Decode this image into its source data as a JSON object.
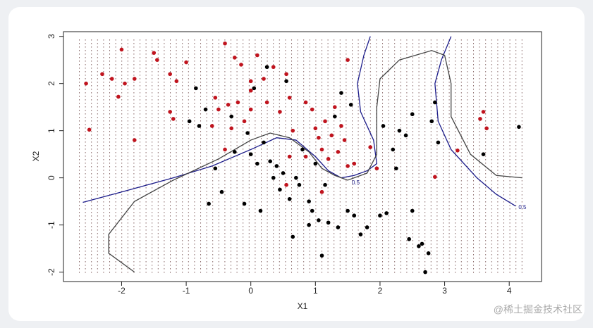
{
  "chart_data": {
    "type": "scatter",
    "xlabel": "X1",
    "ylabel": "X2",
    "xlim": [
      -2.9,
      4.5
    ],
    "ylim": [
      -2.2,
      3.1
    ],
    "xticks": [
      -2,
      -1,
      0,
      1,
      2,
      3,
      4
    ],
    "yticks": [
      -2,
      -1,
      0,
      1,
      2,
      3
    ],
    "series": [
      {
        "color": "#c0141e",
        "x": [
          -2.55,
          -2.5,
          -2.3,
          -2.15,
          -2.05,
          -2.0,
          -1.95,
          -1.8,
          -1.8,
          -1.5,
          -1.45,
          -1.25,
          -1.25,
          -1.2,
          -1.15,
          -1.0,
          -0.6,
          -0.55,
          -0.5,
          -0.4,
          -0.35,
          -0.3,
          -0.25,
          -0.2,
          -0.15,
          -0.1,
          0.0,
          0.0,
          0.0,
          0.1,
          0.2,
          0.25,
          0.35,
          0.45,
          0.55,
          0.6,
          0.65,
          0.85,
          0.95,
          1.0,
          1.05,
          1.1,
          1.15,
          1.2,
          1.25,
          1.3,
          1.35,
          1.4,
          1.45,
          1.5,
          1.5,
          1.6,
          1.85,
          1.95,
          0.55,
          0.85,
          1.1,
          2.85,
          3.2,
          3.55,
          3.6,
          3.65,
          -0.4,
          0.6
        ],
        "y": [
          2.0,
          1.02,
          2.2,
          2.1,
          1.72,
          2.72,
          2.0,
          2.1,
          0.8,
          2.65,
          2.5,
          2.2,
          1.4,
          1.25,
          2.05,
          2.45,
          1.1,
          1.7,
          1.45,
          2.85,
          1.55,
          1.05,
          2.55,
          1.6,
          2.4,
          1.2,
          2.05,
          1.45,
          1.85,
          2.6,
          2.1,
          1.6,
          2.35,
          1.4,
          2.2,
          1.7,
          1.0,
          1.6,
          1.45,
          1.05,
          0.85,
          0.6,
          1.2,
          0.4,
          0.9,
          1.5,
          0.55,
          1.1,
          0.8,
          0.25,
          2.5,
          0.3,
          0.65,
          0.2,
          -0.15,
          0.45,
          -0.3,
          0.02,
          0.58,
          1.25,
          1.4,
          1.05,
          0.6,
          0.45
        ]
      },
      {
        "color": "#000000",
        "x": [
          -0.95,
          -0.85,
          -0.8,
          -0.7,
          -0.65,
          -0.55,
          -0.45,
          -0.3,
          -0.25,
          -0.1,
          -0.05,
          0.0,
          0.05,
          0.1,
          0.15,
          0.2,
          0.25,
          0.3,
          0.35,
          0.4,
          0.45,
          0.5,
          0.55,
          0.6,
          0.65,
          0.7,
          0.75,
          0.8,
          0.9,
          0.9,
          0.95,
          1.0,
          1.05,
          1.1,
          1.15,
          1.2,
          1.3,
          1.35,
          1.4,
          1.5,
          1.55,
          1.6,
          1.7,
          1.8,
          2.0,
          2.05,
          2.1,
          2.2,
          2.25,
          2.3,
          2.45,
          2.5,
          2.5,
          2.6,
          2.7,
          2.75,
          2.8,
          2.85,
          2.9,
          3.6,
          4.15,
          2.4,
          2.65
        ],
        "y": [
          1.2,
          1.9,
          1.1,
          1.45,
          -0.55,
          0.2,
          -0.3,
          1.3,
          0.55,
          -0.55,
          0.95,
          0.5,
          1.9,
          0.3,
          -0.7,
          0.75,
          2.35,
          0.35,
          0.0,
          0.25,
          -0.25,
          0.1,
          2.05,
          -0.45,
          -1.25,
          0.0,
          -0.15,
          0.6,
          -0.5,
          -1.0,
          -0.7,
          0.3,
          -0.9,
          -1.65,
          -0.15,
          -0.95,
          1.3,
          -1.05,
          1.8,
          -0.7,
          1.55,
          -0.8,
          -1.2,
          -1.05,
          -0.8,
          1.1,
          -0.75,
          0.6,
          0.2,
          1.0,
          -1.3,
          -0.7,
          1.35,
          -1.45,
          -2.0,
          -1.6,
          1.2,
          1.6,
          0.75,
          0.5,
          1.08,
          0.9,
          -1.4
        ]
      }
    ],
    "curves": [
      {
        "color": "#1c1c8a",
        "x": [
          -2.6,
          -2.0,
          -1.2,
          -0.6,
          0.0,
          0.4,
          0.7,
          1.0,
          1.2,
          1.4,
          1.6,
          1.8,
          1.95,
          1.9,
          1.7,
          1.65,
          1.75,
          1.85
        ],
        "y": [
          -0.52,
          -0.3,
          0.0,
          0.25,
          0.6,
          0.85,
          0.8,
          0.45,
          0.15,
          0.0,
          0.05,
          0.15,
          0.3,
          0.8,
          1.4,
          2.0,
          2.6,
          3.0
        ]
      },
      {
        "color": "#1c1c8a",
        "x": [
          3.1,
          2.95,
          2.85,
          2.9,
          3.1,
          3.5,
          3.8,
          4.1
        ],
        "y": [
          3.0,
          2.5,
          2.0,
          1.2,
          0.6,
          0.0,
          -0.35,
          -0.6
        ]
      },
      {
        "color": "#444444",
        "x": [
          -1.8,
          -2.2,
          -2.2,
          -1.8,
          -1.2,
          -0.5,
          0.0,
          0.3,
          0.6,
          0.9,
          1.1,
          1.3,
          1.5,
          1.8,
          1.95,
          1.95,
          2.0,
          2.3,
          2.8,
          3.0,
          3.1,
          3.1,
          3.4,
          3.8,
          4.2
        ],
        "y": [
          -2.0,
          -1.6,
          -1.2,
          -0.5,
          -0.05,
          0.4,
          0.8,
          0.95,
          0.85,
          0.55,
          0.2,
          0.05,
          -0.05,
          0.1,
          0.5,
          1.5,
          2.1,
          2.5,
          2.7,
          2.6,
          2.0,
          1.3,
          0.5,
          0.05,
          0.0
        ]
      }
    ],
    "annotations": [
      "0.5",
      "0.5"
    ],
    "watermark": "@稀土掘金技术社区"
  }
}
